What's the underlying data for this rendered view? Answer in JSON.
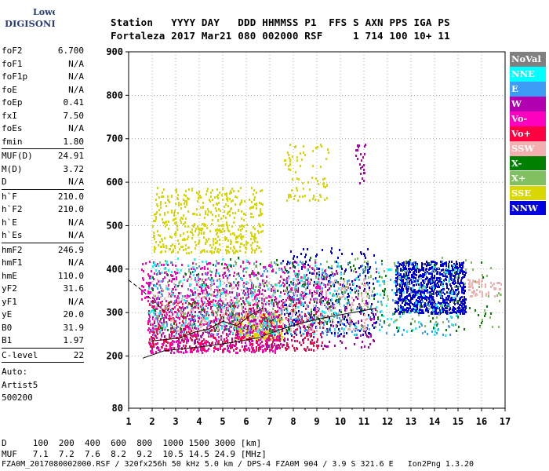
{
  "logo": {
    "line1": "Lowell",
    "line2": "DIGISONDE"
  },
  "header": {
    "labels": [
      "Station",
      "YYYY",
      "DAY",
      "DDD",
      "HHMMSS",
      "P1",
      "FFS",
      "S",
      "AXN",
      "PPS",
      "IGA",
      "PS"
    ],
    "values": [
      "Fortaleza",
      "2017",
      "Mar21",
      "080",
      "002000",
      "RSF",
      "",
      "1",
      "714",
      "100",
      "10+",
      "11"
    ]
  },
  "params": {
    "group1": [
      [
        "foF2",
        "6.700"
      ],
      [
        "foF1",
        "N/A"
      ],
      [
        "foF1p",
        "N/A"
      ],
      [
        "foE",
        "N/A"
      ],
      [
        "foEp",
        "0.41"
      ],
      [
        "fxI",
        "7.50"
      ],
      [
        "foEs",
        "N/A"
      ],
      [
        "fmin",
        "1.80"
      ]
    ],
    "group2": [
      [
        "MUF(D)",
        "24.91"
      ],
      [
        "M(D)",
        "3.72"
      ],
      [
        "D",
        "N/A"
      ]
    ],
    "group3": [
      [
        "h`F",
        "210.0"
      ],
      [
        "h`F2",
        "210.0"
      ],
      [
        "h`E",
        "N/A"
      ],
      [
        "h`Es",
        "N/A"
      ]
    ],
    "group4": [
      [
        "hmF2",
        "246.9"
      ],
      [
        "hmF1",
        "N/A"
      ],
      [
        "hmE",
        "110.0"
      ],
      [
        "yF2",
        "31.6"
      ],
      [
        "yF1",
        "N/A"
      ],
      [
        "yE",
        "20.0"
      ],
      [
        "B0",
        "31.9"
      ],
      [
        "B1",
        "1.97"
      ]
    ],
    "group5": [
      [
        "C-level",
        "22"
      ]
    ],
    "notes": [
      "Auto:",
      "Artist5",
      "500200"
    ]
  },
  "legend": [
    {
      "label": "NoVal",
      "color": "#808080"
    },
    {
      "label": "NNE",
      "color": "#00ffff"
    },
    {
      "label": "E",
      "color": "#3d9cf5"
    },
    {
      "label": "W",
      "color": "#b000b0"
    },
    {
      "label": "Vo-",
      "color": "#ff00c0"
    },
    {
      "label": "Vo+",
      "color": "#ff0040"
    },
    {
      "label": "SSW",
      "color": "#f4b0b0"
    },
    {
      "label": "X-",
      "color": "#008000"
    },
    {
      "label": "X+",
      "color": "#80c060"
    },
    {
      "label": "SSE",
      "color": "#d8d800"
    },
    {
      "label": "NNW",
      "color": "#0000e0"
    }
  ],
  "footer": {
    "line1_label": "D",
    "line1_values": [
      "100",
      "200",
      "400",
      "600",
      "800",
      "1000",
      "1500",
      "3000",
      "[km]"
    ],
    "line2_label": "MUF",
    "line2_values": [
      "7.1",
      "7.2",
      "7.6",
      "8.2",
      "9.2",
      "10.5",
      "14.5",
      "24.9",
      "[MHz]"
    ],
    "line3": "FZA0M_2017080002000.RSF / 320fx256h 50 kHz 5.0 km / DPS-4 FZA0M 904 / 3.9 S 321.6 E   Ion2Png 1.3.20"
  },
  "chart_data": {
    "type": "scatter",
    "xlabel": "",
    "ylabel": "",
    "xlim": [
      1,
      17
    ],
    "ylim": [
      80,
      900
    ],
    "x_ticks": [
      1,
      2,
      3,
      4,
      5,
      6,
      7,
      8,
      9,
      10,
      11,
      12,
      13,
      14,
      15,
      16,
      17
    ],
    "y_ticks": [
      200,
      300,
      400,
      500,
      600,
      700,
      800,
      900
    ],
    "y_tick_labels": [
      "200",
      "300",
      "400",
      "500",
      "600",
      "700",
      "800",
      "900"
    ],
    "y_bottom_label": "80",
    "grid": true,
    "legend_position": "right",
    "series": [
      {
        "name": "SSE",
        "color": "#d8d800",
        "clusters": [
          {
            "x": [
              2,
              6.7
            ],
            "y": [
              440,
              590
            ],
            "n": 500
          },
          {
            "x": [
              5.5,
              7.5
            ],
            "y": [
              240,
              300
            ],
            "n": 250
          },
          {
            "x": [
              7.5,
              9.5
            ],
            "y": [
              560,
              690
            ],
            "n": 80
          }
        ]
      },
      {
        "name": "NNW",
        "color": "#0000e0",
        "clusters": [
          {
            "x": [
              12.3,
              15.3
            ],
            "y": [
              300,
              420
            ],
            "n": 900
          },
          {
            "x": [
              7.5,
              11.5
            ],
            "y": [
              250,
              450
            ],
            "n": 250
          }
        ]
      },
      {
        "name": "Vo-",
        "color": "#ff00c0",
        "clusters": [
          {
            "x": [
              1.8,
              7.5
            ],
            "y": [
              210,
              330
            ],
            "n": 550
          },
          {
            "x": [
              1.5,
              9.5
            ],
            "y": [
              330,
              420
            ],
            "n": 350
          }
        ]
      },
      {
        "name": "Vo+",
        "color": "#ff0040",
        "clusters": [
          {
            "x": [
              1.8,
              9.3
            ],
            "y": [
              215,
              330
            ],
            "n": 500
          }
        ]
      },
      {
        "name": "W",
        "color": "#b000b0",
        "clusters": [
          {
            "x": [
              1.8,
              11.5
            ],
            "y": [
              220,
              400
            ],
            "n": 400
          },
          {
            "x": [
              10.6,
              11.1
            ],
            "y": [
              600,
              690
            ],
            "n": 25
          }
        ]
      },
      {
        "name": "SSW",
        "color": "#f4b0b0",
        "clusters": [
          {
            "x": [
              2,
              11.2
            ],
            "y": [
              260,
              380
            ],
            "n": 400
          },
          {
            "x": [
              15.4,
              16.8
            ],
            "y": [
              340,
              380
            ],
            "n": 60
          }
        ]
      },
      {
        "name": "E",
        "color": "#3d9cf5",
        "clusters": [
          {
            "x": [
              2,
              15
            ],
            "y": [
              250,
              420
            ],
            "n": 400
          }
        ]
      },
      {
        "name": "NNE",
        "color": "#00ffff",
        "clusters": [
          {
            "x": [
              1.8,
              15
            ],
            "y": [
              250,
              430
            ],
            "n": 320
          }
        ]
      },
      {
        "name": "X-",
        "color": "#008000",
        "clusters": [
          {
            "x": [
              2,
              16.5
            ],
            "y": [
              260,
              430
            ],
            "n": 180
          }
        ]
      },
      {
        "name": "X+",
        "color": "#80c060",
        "clusters": [
          {
            "x": [
              2,
              16.8
            ],
            "y": [
              270,
              430
            ],
            "n": 200
          }
        ]
      },
      {
        "name": "NoVal",
        "color": "#808080",
        "clusters": [
          {
            "x": [
              4,
              11
            ],
            "y": [
              270,
              400
            ],
            "n": 40
          }
        ]
      }
    ],
    "profile_line": {
      "x": [
        1.6,
        2.5,
        3.5,
        4.5,
        5.5,
        6.5,
        7.5,
        8.5,
        9.5,
        10.5,
        11.5
      ],
      "y": [
        195,
        212,
        218,
        224,
        232,
        242,
        262,
        278,
        290,
        300,
        310
      ]
    },
    "trace_line": {
      "x": [
        2.0,
        2.6,
        3.2,
        3.8,
        4.4,
        5.0,
        5.6,
        6.2,
        6.7
      ],
      "y": [
        235,
        238,
        242,
        255,
        262,
        280,
        270,
        295,
        310
      ]
    },
    "dashed_line": {
      "x": [
        1.0,
        1.6,
        2.0,
        2.6
      ],
      "y": [
        375,
        350,
        328,
        300
      ]
    }
  }
}
